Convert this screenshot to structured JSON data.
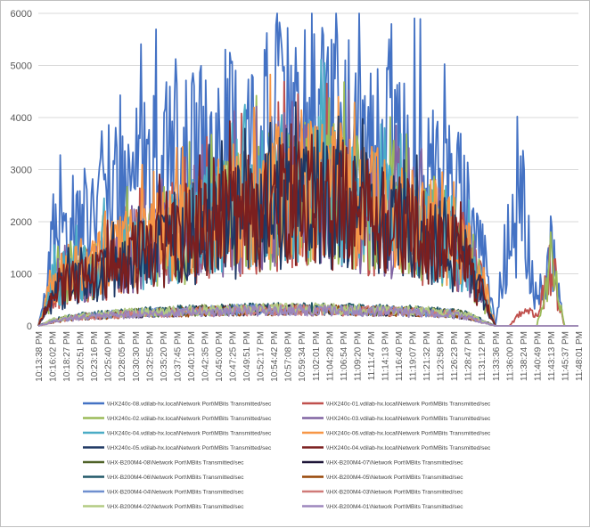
{
  "chart_data": {
    "type": "line",
    "title": "",
    "xlabel": "",
    "ylabel": "",
    "ylim": [
      0,
      6000
    ],
    "y_ticks": [
      0,
      1000,
      2000,
      3000,
      4000,
      5000,
      6000
    ],
    "grid": "horizontal",
    "legend_position": "bottom",
    "x_tick_labels": [
      "10:13:38 PM",
      "10:16:02 PM",
      "10:18:27 PM",
      "10:20:51 PM",
      "10:23:16 PM",
      "10:25:40 PM",
      "10:28:05 PM",
      "10:30:30 PM",
      "10:32:55 PM",
      "10:35:20 PM",
      "10:37:45 PM",
      "10:40:10 PM",
      "10:42:35 PM",
      "10:45:00 PM",
      "10:47:25 PM",
      "10:49:51 PM",
      "10:52:17 PM",
      "10:54:42 PM",
      "10:57:08 PM",
      "10:59:34 PM",
      "11:02:01 PM",
      "11:04:28 PM",
      "11:06:54 PM",
      "11:09:20 PM",
      "11:11:47 PM",
      "11:14:13 PM",
      "11:16:40 PM",
      "11:19:07 PM",
      "11:21:32 PM",
      "11:23:58 PM",
      "11:26:23 PM",
      "11:28:47 PM",
      "11:31:12 PM",
      "11:33:36 PM",
      "11:36:00 PM",
      "11:38:24 PM",
      "11:40:49 PM",
      "11:43:13 PM",
      "11:45:37 PM",
      "11:48:01 PM"
    ],
    "series": [
      {
        "name": "\\\\HX240c-08.vdilab-hx.local\\Network Port\\MBits Transmitted/sec",
        "color": "#4472c4",
        "values": [
          0,
          1500,
          1800,
          2100,
          2300,
          2500,
          2600,
          2800,
          2900,
          3000,
          3100,
          3200,
          3300,
          3400,
          3500,
          3600,
          3700,
          3800,
          3900,
          4000,
          3800,
          3700,
          3600,
          3500,
          3400,
          3300,
          3200,
          3100,
          3000,
          2800,
          2600,
          2400,
          1600,
          0,
          1800,
          2200,
          400,
          1400,
          0,
          0
        ]
      },
      {
        "name": "\\\\HX240c-01.vdilab-hx.local\\Network Port\\MBits Transmitted/sec",
        "color": "#c0504d",
        "values": [
          0,
          600,
          800,
          900,
          1000,
          1100,
          1200,
          1300,
          1400,
          1500,
          1600,
          1700,
          1800,
          1900,
          2000,
          2100,
          2200,
          2300,
          2400,
          2500,
          2500,
          2400,
          2300,
          2200,
          2100,
          2000,
          1900,
          1800,
          1700,
          1600,
          1500,
          1300,
          900,
          0,
          0,
          300,
          200,
          1100,
          0,
          0
        ]
      },
      {
        "name": "\\\\HX240c-02.vdilab-hx.local\\Network Port\\MBits Transmitted/sec",
        "color": "#9bbb59",
        "values": [
          0,
          700,
          900,
          1000,
          1100,
          1200,
          1300,
          1400,
          1500,
          1600,
          1700,
          1800,
          1900,
          2000,
          2100,
          2200,
          2300,
          2400,
          2500,
          2600,
          2600,
          2500,
          2400,
          2300,
          2200,
          2100,
          2000,
          1900,
          1800,
          1700,
          1500,
          1200,
          700,
          0,
          0,
          0,
          0,
          1200,
          0,
          0
        ]
      },
      {
        "name": "\\\\HX240c-03.vdilab-hx.local\\Network Port\\MBits Transmitted/sec",
        "color": "#8064a2",
        "values": [
          0,
          650,
          850,
          950,
          1050,
          1150,
          1250,
          1350,
          1450,
          1550,
          1650,
          1750,
          1850,
          1950,
          2050,
          2150,
          2250,
          2350,
          2450,
          2550,
          2550,
          2450,
          2350,
          2250,
          2150,
          2050,
          1950,
          1850,
          1750,
          1650,
          1450,
          1150,
          650,
          0,
          0,
          0,
          0,
          0,
          0,
          0
        ]
      },
      {
        "name": "\\\\HX240c-04.vdilab-hx.local\\Network Port\\MBits Transmitted/sec",
        "color": "#4bacc6",
        "values": [
          0,
          750,
          950,
          1050,
          1150,
          1250,
          1350,
          1450,
          1550,
          1650,
          1750,
          1850,
          1950,
          2050,
          2150,
          2250,
          2350,
          2450,
          2550,
          2650,
          2650,
          2550,
          2450,
          2350,
          2250,
          2150,
          2050,
          1950,
          1850,
          1750,
          1550,
          1250,
          750,
          0,
          0,
          0,
          0,
          0,
          0,
          0
        ]
      },
      {
        "name": "\\\\HX240c-06.vdilab-hx.local\\Network Port\\MBits Transmitted/sec",
        "color": "#f79646",
        "values": [
          0,
          800,
          1000,
          1100,
          1200,
          1300,
          1400,
          1500,
          1600,
          1700,
          1800,
          1900,
          2000,
          2100,
          2200,
          2300,
          2400,
          2500,
          2600,
          2700,
          2700,
          2600,
          2500,
          2400,
          2300,
          2200,
          2100,
          2000,
          1900,
          1800,
          1600,
          1300,
          1000,
          0,
          0,
          0,
          0,
          0,
          0,
          0
        ]
      },
      {
        "name": "\\\\HX240c-05.vdilab-hx.local\\Network Port\\MBits Transmitted/sec",
        "color": "#1f3864",
        "values": [
          0,
          550,
          750,
          850,
          950,
          1050,
          1150,
          1250,
          1350,
          1450,
          1550,
          1650,
          1750,
          1850,
          1950,
          2050,
          2150,
          2250,
          2350,
          2450,
          2450,
          2350,
          2250,
          2150,
          2050,
          1950,
          1850,
          1750,
          1650,
          1550,
          1350,
          1050,
          550,
          0,
          0,
          0,
          0,
          0,
          0,
          0
        ]
      },
      {
        "name": "\\\\HX240c-04.vdilab-hx.local\\Network Port\\MBits Transmitted/sec",
        "color": "#7b1f1f",
        "values": [
          0,
          600,
          800,
          900,
          1000,
          1100,
          1200,
          1300,
          1400,
          1500,
          1600,
          1700,
          1800,
          1900,
          2000,
          2100,
          2200,
          2300,
          2400,
          2500,
          2500,
          2400,
          2300,
          2200,
          2100,
          2000,
          1900,
          1800,
          1700,
          1600,
          1400,
          1100,
          600,
          0,
          0,
          0,
          0,
          0,
          0,
          0
        ]
      },
      {
        "name": "\\\\HX-B200M4-08\\Network Port\\MBits Transmitted/sec",
        "color": "#4f6228",
        "values": [
          0,
          100,
          150,
          180,
          200,
          220,
          240,
          250,
          260,
          270,
          280,
          290,
          300,
          300,
          310,
          310,
          320,
          320,
          320,
          320,
          320,
          320,
          310,
          310,
          300,
          300,
          290,
          280,
          270,
          260,
          240,
          200,
          100,
          0,
          0,
          0,
          0,
          0,
          0,
          0
        ]
      },
      {
        "name": "\\\\HX-B200M4-07\\Network Port\\MBits Transmitted/sec",
        "color": "#1e1538",
        "values": [
          0,
          90,
          140,
          170,
          190,
          210,
          230,
          240,
          250,
          260,
          270,
          280,
          290,
          290,
          300,
          300,
          310,
          310,
          310,
          310,
          310,
          310,
          300,
          300,
          290,
          290,
          280,
          270,
          260,
          250,
          230,
          190,
          90,
          0,
          0,
          0,
          0,
          0,
          0,
          0
        ]
      },
      {
        "name": "\\\\HX-B200M4-06\\Network Port\\MBits Transmitted/sec",
        "color": "#215868",
        "values": [
          0,
          110,
          160,
          190,
          210,
          230,
          250,
          260,
          270,
          280,
          290,
          300,
          310,
          310,
          320,
          320,
          330,
          330,
          330,
          330,
          330,
          330,
          320,
          320,
          310,
          310,
          300,
          290,
          280,
          270,
          250,
          210,
          110,
          0,
          0,
          0,
          0,
          0,
          0,
          0
        ]
      },
      {
        "name": "\\\\HX-B200M4-05\\Network Port\\MBits Transmitted/sec",
        "color": "#974706",
        "values": [
          0,
          80,
          130,
          160,
          180,
          200,
          220,
          230,
          240,
          250,
          260,
          270,
          280,
          280,
          290,
          290,
          300,
          300,
          300,
          300,
          300,
          300,
          290,
          290,
          280,
          280,
          270,
          260,
          250,
          240,
          220,
          180,
          80,
          0,
          0,
          0,
          0,
          0,
          0,
          0
        ]
      },
      {
        "name": "\\\\HX-B200M4-04\\Network Port\\MBits Transmitted/sec",
        "color": "#6f8fcf",
        "values": [
          0,
          95,
          145,
          175,
          195,
          215,
          235,
          245,
          255,
          265,
          275,
          285,
          295,
          295,
          305,
          305,
          315,
          315,
          315,
          315,
          315,
          315,
          305,
          305,
          295,
          295,
          285,
          275,
          265,
          255,
          235,
          195,
          95,
          0,
          0,
          0,
          0,
          0,
          0,
          0
        ]
      },
      {
        "name": "\\\\HX-B200M4-03\\Network Port\\MBits Transmitted/sec",
        "color": "#d07a78",
        "values": [
          0,
          85,
          135,
          165,
          185,
          205,
          225,
          235,
          245,
          255,
          265,
          275,
          285,
          285,
          295,
          295,
          305,
          305,
          305,
          305,
          305,
          305,
          295,
          295,
          285,
          285,
          275,
          265,
          255,
          245,
          225,
          185,
          85,
          0,
          0,
          0,
          0,
          0,
          0,
          0
        ]
      },
      {
        "name": "\\\\HX-B200M4-02\\Network Port\\MBits Transmitted/sec",
        "color": "#b3cb83",
        "values": [
          0,
          105,
          155,
          185,
          205,
          225,
          245,
          255,
          265,
          275,
          285,
          295,
          305,
          305,
          315,
          315,
          325,
          325,
          325,
          325,
          325,
          325,
          315,
          315,
          305,
          305,
          295,
          285,
          275,
          265,
          245,
          205,
          105,
          0,
          0,
          0,
          0,
          0,
          0,
          0
        ]
      },
      {
        "name": "\\\\HX-B200M4-01\\Network Port\\MBits Transmitted/sec",
        "color": "#9d87bd",
        "values": [
          0,
          75,
          125,
          155,
          175,
          195,
          215,
          225,
          235,
          245,
          255,
          265,
          275,
          275,
          285,
          285,
          295,
          295,
          295,
          295,
          295,
          295,
          285,
          285,
          275,
          275,
          265,
          255,
          245,
          235,
          215,
          175,
          75,
          0,
          0,
          0,
          0,
          0,
          0,
          0
        ]
      }
    ]
  }
}
